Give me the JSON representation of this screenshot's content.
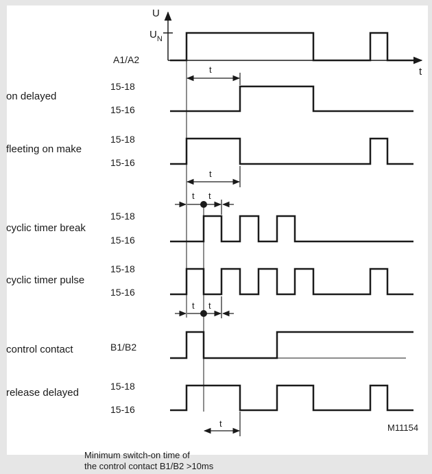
{
  "axes": {
    "u_label": "U",
    "un_label": "U",
    "un_sub": "N",
    "t_label": "t"
  },
  "rows": {
    "a1a2": "A1/A2",
    "on_delayed": {
      "label": "on delayed",
      "sig_top": "15-18",
      "sig_bottom": "15-16"
    },
    "fleeting": {
      "label": "fleeting on make",
      "sig_top": "15-18",
      "sig_bottom": "15-16"
    },
    "cyclic_break": {
      "label": "cyclic timer break",
      "sig_top": "15-18",
      "sig_bottom": "15-16"
    },
    "cyclic_pulse": {
      "label": "cyclic timer pulse",
      "sig_top": "15-18",
      "sig_bottom": "15-16"
    },
    "control": {
      "label": "control  contact",
      "sig": "B1/B2"
    },
    "release": {
      "label": "release delayed",
      "sig_top": "15-18",
      "sig_bottom": "15-16"
    }
  },
  "interval_label": "t",
  "figure_id": "M11154",
  "note": {
    "line1": "Minimum switch-on time of",
    "line2": "the control contact B1/B2 >10ms"
  },
  "colors": {
    "background": "#e6e6e6",
    "panel": "#ffffff",
    "ink": "#1a1a1a"
  }
}
